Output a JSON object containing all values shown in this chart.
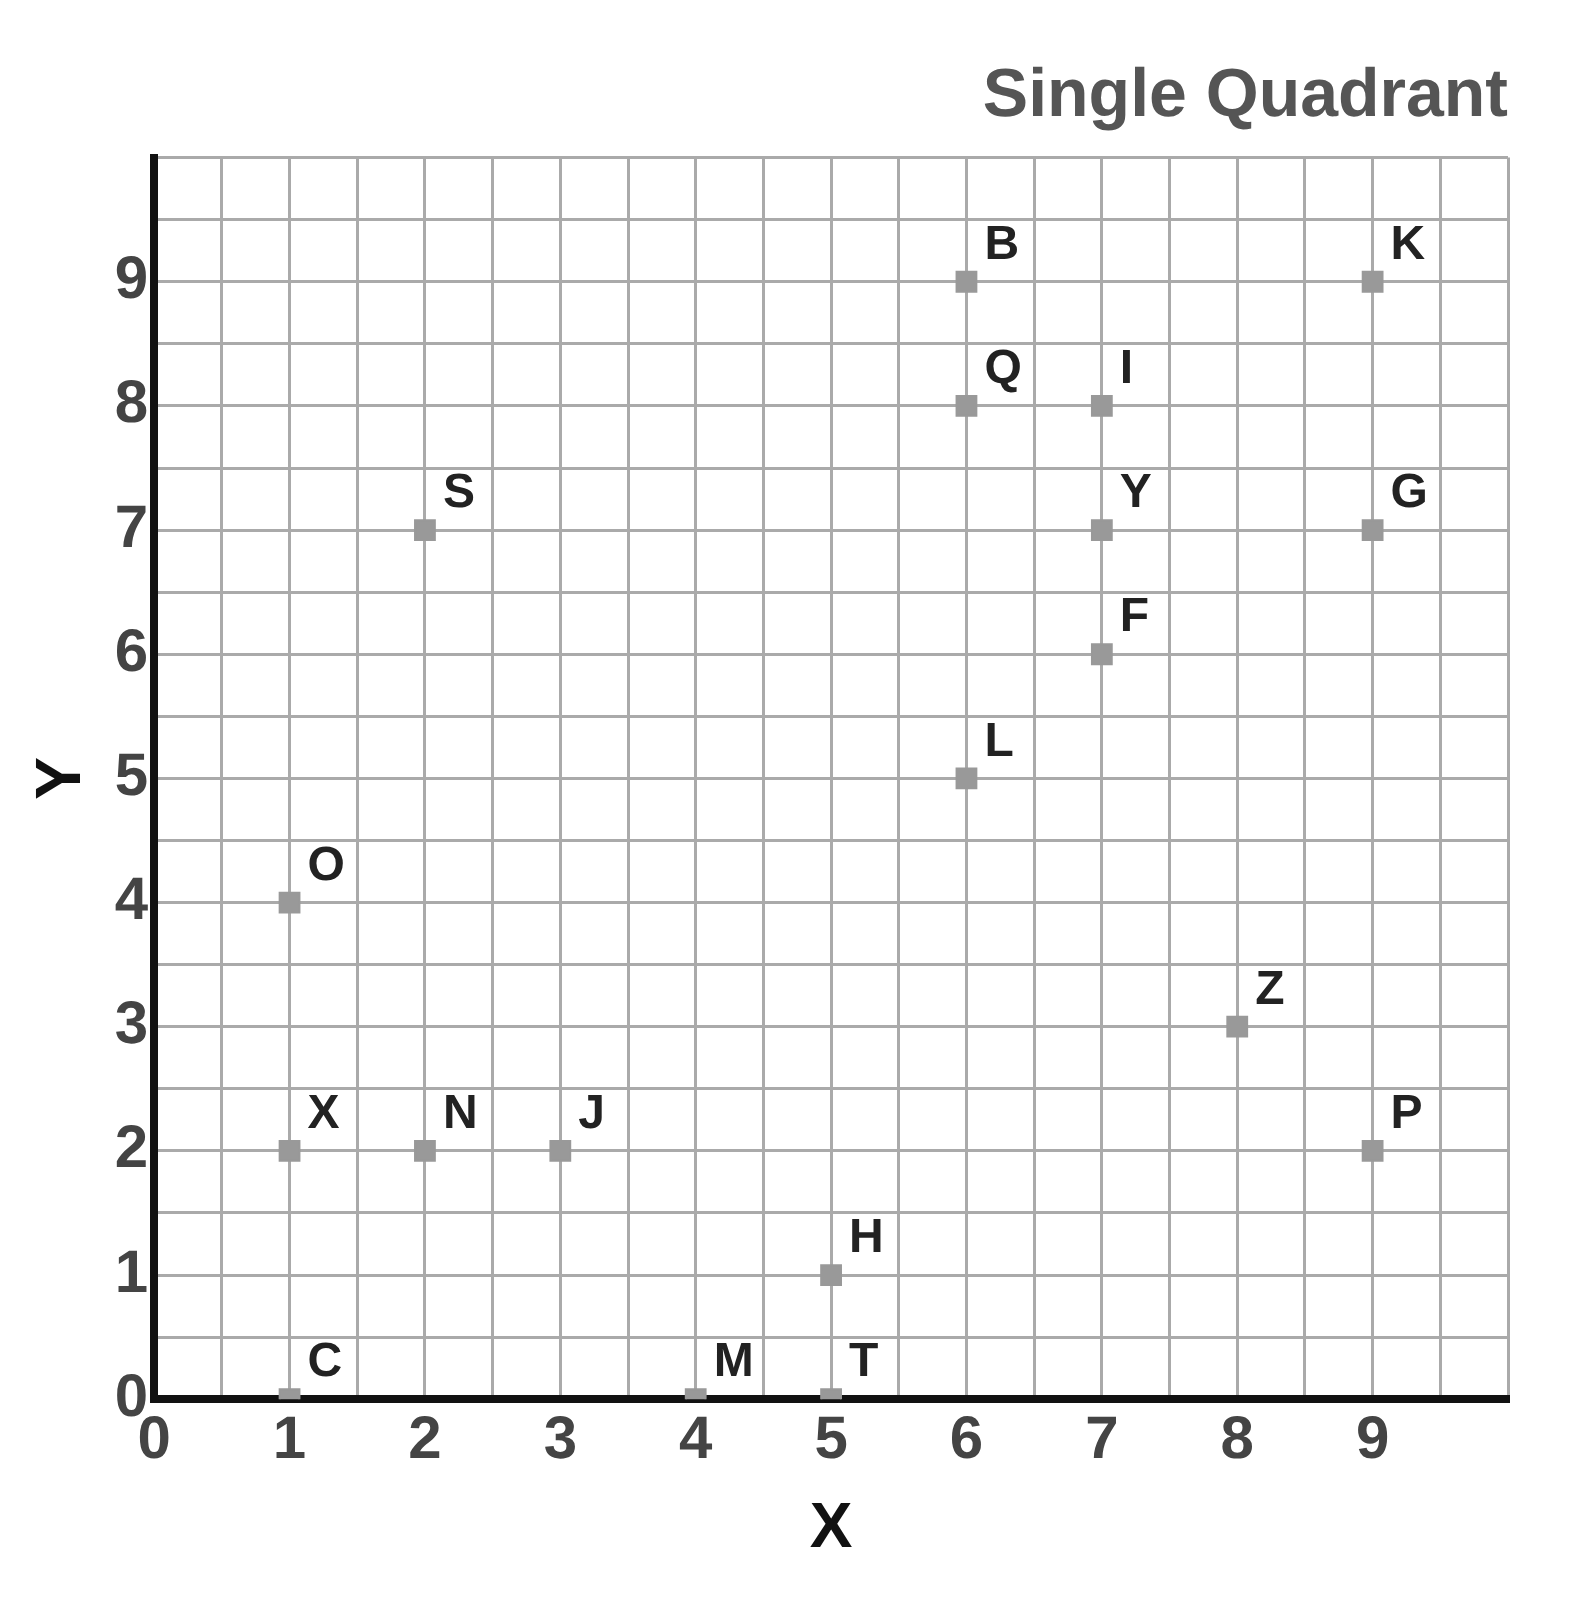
{
  "chart_data": {
    "type": "scatter",
    "title": "Single Quadrant",
    "xlabel": "X",
    "ylabel": "Y",
    "x": [
      6,
      9,
      6,
      7,
      2,
      7,
      9,
      7,
      6,
      1,
      8,
      1,
      2,
      3,
      9,
      5,
      1,
      4,
      5
    ],
    "values": [
      9,
      9,
      8,
      8,
      7,
      7,
      7,
      6,
      5,
      4,
      3,
      2,
      2,
      2,
      2,
      1,
      0,
      0,
      0
    ],
    "color": "#999999",
    "marker": "square",
    "grid": true,
    "xlim": [
      0,
      10
    ],
    "ylim": [
      0,
      10
    ],
    "xticks": [
      0,
      {
        "value": 0.5,
        "label": null
      },
      1,
      {
        "value": 1.5,
        "label": null
      },
      2,
      {
        "value": 2.5,
        "label": null
      },
      3,
      {
        "value": 3.5,
        "label": null
      },
      4,
      {
        "value": 4.5,
        "label": null
      },
      5,
      {
        "value": 5.5,
        "label": null
      },
      6,
      {
        "value": 6.5,
        "label": null
      },
      7,
      {
        "value": 7.5,
        "label": null
      },
      8,
      {
        "value": 8.5,
        "label": null
      },
      9,
      {
        "value": 9.5,
        "label": null
      },
      {
        "value": 10,
        "label": null
      }
    ],
    "yticks": [
      0,
      {
        "value": 0.5,
        "label": null
      },
      1,
      {
        "value": 1.5,
        "label": null
      },
      2,
      {
        "value": 2.5,
        "label": null
      },
      3,
      {
        "value": 3.5,
        "label": null
      },
      4,
      {
        "value": 4.5,
        "label": null
      },
      5,
      {
        "value": 5.5,
        "label": null
      },
      6,
      {
        "value": 6.5,
        "label": null
      },
      7,
      {
        "value": 7.5,
        "label": null
      },
      8,
      {
        "value": 8.5,
        "label": null
      },
      9,
      {
        "value": 9.5,
        "label": null
      },
      {
        "value": 10,
        "label": null
      }
    ],
    "annotations": [
      {
        "text": "B",
        "x": 6,
        "y": 9
      },
      {
        "text": "K",
        "x": 9,
        "y": 9
      },
      {
        "text": "Q",
        "x": 6,
        "y": 8
      },
      {
        "text": "I",
        "x": 7,
        "y": 8
      },
      {
        "text": "S",
        "x": 2,
        "y": 7
      },
      {
        "text": "Y",
        "x": 7,
        "y": 7
      },
      {
        "text": "G",
        "x": 9,
        "y": 7
      },
      {
        "text": "F",
        "x": 7,
        "y": 6
      },
      {
        "text": "L",
        "x": 6,
        "y": 5
      },
      {
        "text": "O",
        "x": 1,
        "y": 4
      },
      {
        "text": "Z",
        "x": 8,
        "y": 3
      },
      {
        "text": "X",
        "x": 1,
        "y": 2
      },
      {
        "text": "N",
        "x": 2,
        "y": 2
      },
      {
        "text": "J",
        "x": 3,
        "y": 2
      },
      {
        "text": "P",
        "x": 9,
        "y": 2
      },
      {
        "text": "H",
        "x": 5,
        "y": 1
      },
      {
        "text": "C",
        "x": 1,
        "y": 0
      },
      {
        "text": "M",
        "x": 4,
        "y": 0
      },
      {
        "text": "T",
        "x": 5,
        "y": 0
      }
    ]
  }
}
